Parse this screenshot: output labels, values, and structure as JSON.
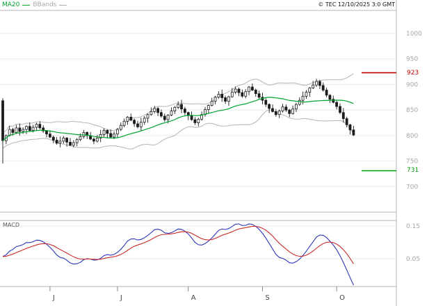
{
  "header": {
    "ma20_label": "MA20",
    "bbands_label": "BBands",
    "copyright": "© TEC 12/10/2025 3:0 GMT"
  },
  "price_panel": {
    "resistance": {
      "label": "923",
      "value": 923,
      "color": "#bb0000"
    },
    "support": {
      "label": "731",
      "value": 731,
      "color": "#009b00"
    }
  },
  "price_axis": {
    "ticks": [
      1000,
      950,
      900,
      850,
      800,
      750,
      700
    ]
  },
  "macd_panel": {
    "label": "MACD",
    "ticks": [
      "0.15",
      "0.05"
    ]
  },
  "x_axis": {
    "months": [
      {
        "label": "J",
        "index": 14
      },
      {
        "label": "J",
        "index": 34
      },
      {
        "label": "A",
        "index": 55
      },
      {
        "label": "S",
        "index": 77
      },
      {
        "label": "O",
        "index": 99
      }
    ]
  },
  "colors": {
    "ma20": "#00a32e",
    "bbands": "#b4b4b4",
    "candle": "#1c1c1c",
    "macd_line": "#2b35b8",
    "signal_line": "#cc2a2a",
    "axis_text": "#a6a6a6",
    "grid": "#ebebeb",
    "border": "#b5b5b5"
  },
  "chart_data": {
    "type": "candlestick",
    "title": "Daily price chart with MA20, Bollinger Bands and MACD",
    "ylim": [
      650,
      1045
    ],
    "y_ticks": [
      1000,
      950,
      900,
      850,
      800,
      750,
      700
    ],
    "x_months": [
      "J",
      "J",
      "A",
      "S",
      "O"
    ],
    "levels": {
      "resistance": 923,
      "support": 731
    },
    "overlays": [
      "MA20",
      "BBands"
    ],
    "candles": {
      "first_open": 868,
      "first_low": 745,
      "closes": [
        790,
        800,
        812,
        806,
        815,
        808,
        812,
        818,
        810,
        816,
        822,
        815,
        809,
        803,
        797,
        791,
        785,
        789,
        795,
        787,
        781,
        786,
        792,
        798,
        806,
        800,
        793,
        789,
        795,
        802,
        810,
        804,
        797,
        803,
        812,
        820,
        828,
        836,
        830,
        823,
        817,
        826,
        834,
        841,
        847,
        853,
        845,
        838,
        831,
        840,
        848,
        855,
        861,
        852,
        845,
        839,
        831,
        825,
        832,
        841,
        851,
        859,
        867,
        875,
        881,
        874,
        867,
        876,
        885,
        891,
        884,
        877,
        886,
        895,
        889,
        882,
        875,
        869,
        861,
        853,
        847,
        841,
        848,
        856,
        850,
        843,
        852,
        861,
        869,
        877,
        885,
        893,
        899,
        906,
        898,
        889,
        879,
        871,
        865,
        857,
        845,
        833,
        821,
        811,
        801
      ],
      "wick_high": [
        5,
        2,
        7,
        3,
        6,
        9,
        4,
        2,
        8,
        5,
        3,
        6
      ],
      "wick_low": [
        4,
        7,
        2,
        6,
        3,
        8,
        5,
        9,
        2,
        4,
        7,
        3
      ]
    },
    "macd": {
      "fast": 12,
      "slow": 26,
      "signal": 9,
      "axis_tick_labels": [
        "0.15",
        "0.05"
      ]
    }
  }
}
